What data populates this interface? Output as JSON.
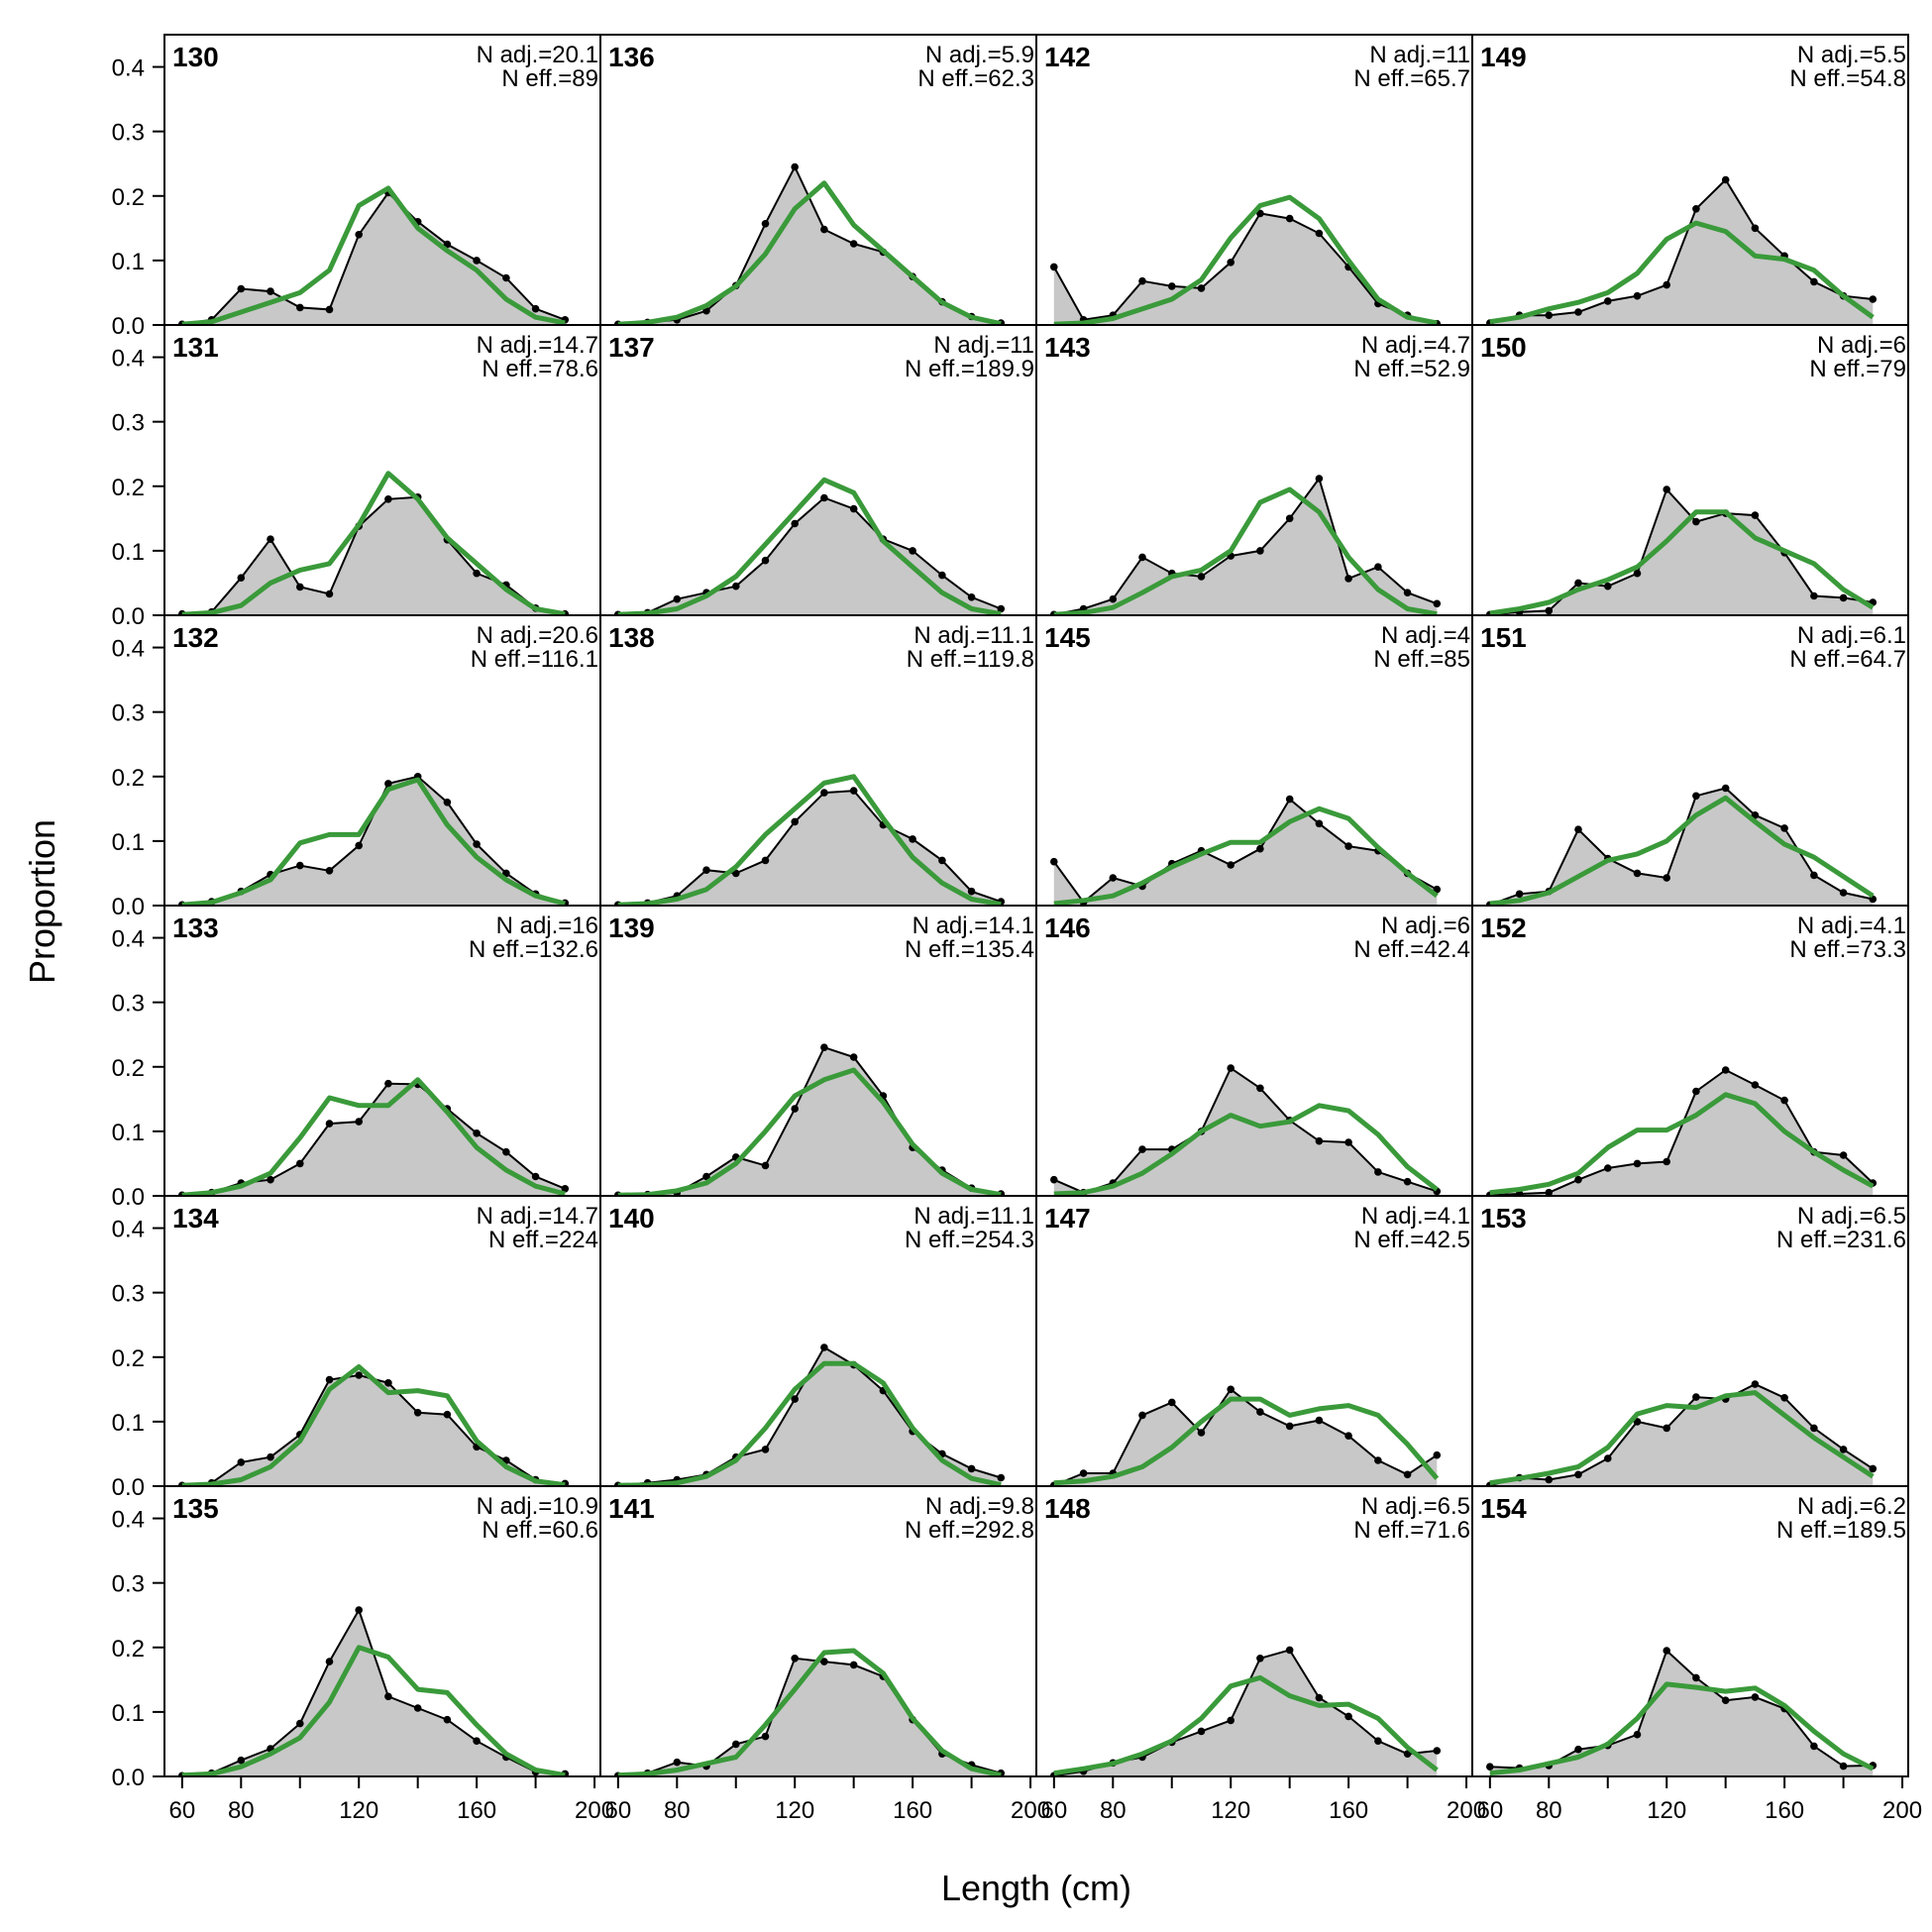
{
  "chart_data": {
    "type": "area",
    "xlabel": "Length (cm)",
    "ylabel": "Proportion",
    "xlim": [
      54,
      202
    ],
    "ylim": [
      0,
      0.45
    ],
    "x_ticks": [
      60,
      80,
      120,
      160,
      200
    ],
    "y_ticks": [
      0.0,
      0.1,
      0.2,
      0.3,
      0.4
    ],
    "x_ticks_formatted": [
      "60",
      "80",
      "120",
      "160",
      "200"
    ],
    "y_ticks_formatted": [
      "0.0",
      "0.1",
      "0.2",
      "0.3",
      "0.4"
    ],
    "x": [
      60,
      70,
      80,
      90,
      100,
      110,
      120,
      130,
      140,
      150,
      160,
      170,
      180,
      190
    ],
    "grid": false,
    "colors": {
      "observed_fill": "#c8c8c8",
      "observed_line": "#000000",
      "expected_line": "#3a9a3a",
      "zero_line": "#b4b4b4"
    },
    "layout": {
      "rows": 6,
      "cols": 4,
      "order": "column-major"
    },
    "panels": [
      {
        "id": "130",
        "n_adj": "N adj.=20.1",
        "n_eff": "N eff.=89",
        "obs": [
          0.001,
          0.008,
          0.056,
          0.052,
          0.027,
          0.024,
          0.14,
          0.205,
          0.16,
          0.125,
          0.1,
          0.073,
          0.025,
          0.008
        ],
        "exp": [
          0.001,
          0.005,
          0.02,
          0.035,
          0.05,
          0.085,
          0.185,
          0.212,
          0.15,
          0.115,
          0.085,
          0.04,
          0.012,
          0.003
        ]
      },
      {
        "id": "131",
        "n_adj": "N adj.=14.7",
        "n_eff": "N eff.=78.6",
        "obs": [
          0.002,
          0.005,
          0.058,
          0.118,
          0.044,
          0.033,
          0.138,
          0.18,
          0.183,
          0.117,
          0.065,
          0.047,
          0.011,
          0.002
        ],
        "exp": [
          0.001,
          0.004,
          0.015,
          0.05,
          0.07,
          0.08,
          0.14,
          0.22,
          0.18,
          0.12,
          0.08,
          0.04,
          0.01,
          0.002
        ]
      },
      {
        "id": "132",
        "n_adj": "N adj.=20.6",
        "n_eff": "N eff.=116.1",
        "obs": [
          0.001,
          0.006,
          0.022,
          0.048,
          0.062,
          0.054,
          0.093,
          0.189,
          0.2,
          0.16,
          0.095,
          0.05,
          0.018,
          0.004
        ],
        "exp": [
          0.001,
          0.005,
          0.02,
          0.04,
          0.097,
          0.11,
          0.11,
          0.18,
          0.195,
          0.125,
          0.075,
          0.04,
          0.015,
          0.003
        ]
      },
      {
        "id": "133",
        "n_adj": "N adj.=16",
        "n_eff": "N eff.=132.6",
        "obs": [
          0.001,
          0.005,
          0.02,
          0.025,
          0.05,
          0.112,
          0.115,
          0.174,
          0.173,
          0.135,
          0.097,
          0.068,
          0.03,
          0.011
        ],
        "exp": [
          0.001,
          0.005,
          0.015,
          0.035,
          0.09,
          0.152,
          0.14,
          0.14,
          0.18,
          0.13,
          0.075,
          0.04,
          0.015,
          0.003
        ]
      },
      {
        "id": "134",
        "n_adj": "N adj.=14.7",
        "n_eff": "N eff.=224",
        "obs": [
          0.001,
          0.005,
          0.037,
          0.045,
          0.08,
          0.165,
          0.172,
          0.16,
          0.114,
          0.111,
          0.061,
          0.04,
          0.01,
          0.004
        ],
        "exp": [
          0.001,
          0.003,
          0.01,
          0.03,
          0.07,
          0.15,
          0.185,
          0.145,
          0.148,
          0.14,
          0.07,
          0.03,
          0.008,
          0.002
        ]
      },
      {
        "id": "135",
        "n_adj": "N adj.=10.9",
        "n_eff": "N eff.=60.6",
        "obs": [
          0.001,
          0.005,
          0.025,
          0.043,
          0.082,
          0.178,
          0.258,
          0.124,
          0.106,
          0.088,
          0.055,
          0.03,
          0.007,
          0.004
        ],
        "exp": [
          0.002,
          0.004,
          0.015,
          0.035,
          0.06,
          0.115,
          0.2,
          0.185,
          0.135,
          0.13,
          0.08,
          0.035,
          0.01,
          0.002
        ]
      },
      {
        "id": "136",
        "n_adj": "N adj.=5.9",
        "n_eff": "N eff.=62.3",
        "obs": [
          0.001,
          0.004,
          0.008,
          0.022,
          0.061,
          0.157,
          0.245,
          0.148,
          0.126,
          0.113,
          0.075,
          0.036,
          0.013,
          0.003
        ],
        "exp": [
          0.001,
          0.004,
          0.012,
          0.03,
          0.06,
          0.11,
          0.18,
          0.22,
          0.155,
          0.115,
          0.075,
          0.035,
          0.012,
          0.002
        ]
      },
      {
        "id": "137",
        "n_adj": "N adj.=11",
        "n_eff": "N eff.=189.9",
        "obs": [
          0.001,
          0.004,
          0.025,
          0.035,
          0.045,
          0.085,
          0.142,
          0.182,
          0.165,
          0.118,
          0.1,
          0.062,
          0.028,
          0.01
        ],
        "exp": [
          0.001,
          0.003,
          0.01,
          0.03,
          0.06,
          0.11,
          0.16,
          0.21,
          0.19,
          0.115,
          0.075,
          0.035,
          0.01,
          0.002
        ]
      },
      {
        "id": "138",
        "n_adj": "N adj.=11.1",
        "n_eff": "N eff.=119.8",
        "obs": [
          0.001,
          0.004,
          0.015,
          0.055,
          0.05,
          0.07,
          0.13,
          0.175,
          0.178,
          0.125,
          0.103,
          0.07,
          0.022,
          0.006
        ],
        "exp": [
          0.001,
          0.003,
          0.01,
          0.025,
          0.06,
          0.11,
          0.15,
          0.19,
          0.2,
          0.135,
          0.075,
          0.035,
          0.01,
          0.002
        ]
      },
      {
        "id": "139",
        "n_adj": "N adj.=14.1",
        "n_eff": "N eff.=135.4",
        "obs": [
          0.001,
          0.002,
          0.005,
          0.03,
          0.06,
          0.047,
          0.135,
          0.23,
          0.215,
          0.155,
          0.075,
          0.04,
          0.012,
          0.003
        ],
        "exp": [
          0.001,
          0.002,
          0.008,
          0.02,
          0.05,
          0.1,
          0.155,
          0.18,
          0.195,
          0.145,
          0.08,
          0.035,
          0.01,
          0.002
        ]
      },
      {
        "id": "140",
        "n_adj": "N adj.=11.1",
        "n_eff": "N eff.=254.3",
        "obs": [
          0.001,
          0.005,
          0.01,
          0.018,
          0.045,
          0.057,
          0.135,
          0.215,
          0.188,
          0.148,
          0.085,
          0.05,
          0.027,
          0.013
        ],
        "exp": [
          0.001,
          0.002,
          0.005,
          0.015,
          0.04,
          0.09,
          0.15,
          0.19,
          0.19,
          0.16,
          0.09,
          0.04,
          0.012,
          0.002
        ]
      },
      {
        "id": "141",
        "n_adj": "N adj.=9.8",
        "n_eff": "N eff.=292.8",
        "obs": [
          0.001,
          0.005,
          0.022,
          0.016,
          0.05,
          0.062,
          0.183,
          0.178,
          0.173,
          0.155,
          0.088,
          0.035,
          0.018,
          0.005
        ],
        "exp": [
          0.002,
          0.004,
          0.01,
          0.02,
          0.03,
          0.08,
          0.135,
          0.192,
          0.195,
          0.16,
          0.09,
          0.04,
          0.012,
          0.002
        ]
      },
      {
        "id": "142",
        "n_adj": "N adj.=11",
        "n_eff": "N eff.=65.7",
        "obs": [
          0.09,
          0.008,
          0.015,
          0.068,
          0.06,
          0.057,
          0.097,
          0.173,
          0.165,
          0.142,
          0.09,
          0.033,
          0.015,
          0.002
        ],
        "exp": [
          0.001,
          0.003,
          0.01,
          0.025,
          0.04,
          0.07,
          0.135,
          0.185,
          0.198,
          0.165,
          0.1,
          0.04,
          0.012,
          0.003
        ]
      },
      {
        "id": "143",
        "n_adj": "N adj.=4.7",
        "n_eff": "N eff.=52.9",
        "obs": [
          0.001,
          0.01,
          0.025,
          0.09,
          0.065,
          0.06,
          0.092,
          0.1,
          0.15,
          0.212,
          0.057,
          0.075,
          0.035,
          0.018
        ],
        "exp": [
          0.001,
          0.004,
          0.012,
          0.035,
          0.06,
          0.07,
          0.1,
          0.175,
          0.195,
          0.16,
          0.09,
          0.04,
          0.01,
          0.002
        ]
      },
      {
        "id": "145",
        "n_adj": "N adj.=4",
        "n_eff": "N eff.=85",
        "obs": [
          0.068,
          0.005,
          0.043,
          0.03,
          0.065,
          0.085,
          0.063,
          0.088,
          0.165,
          0.127,
          0.092,
          0.085,
          0.05,
          0.025
        ],
        "exp": [
          0.003,
          0.008,
          0.015,
          0.035,
          0.06,
          0.08,
          0.098,
          0.098,
          0.13,
          0.15,
          0.135,
          0.09,
          0.05,
          0.015
        ]
      },
      {
        "id": "146",
        "n_adj": "N adj.=6",
        "n_eff": "N eff.=42.4",
        "obs": [
          0.025,
          0.005,
          0.02,
          0.072,
          0.072,
          0.1,
          0.198,
          0.167,
          0.117,
          0.085,
          0.083,
          0.037,
          0.022,
          0.007
        ],
        "exp": [
          0.003,
          0.005,
          0.015,
          0.035,
          0.065,
          0.1,
          0.125,
          0.108,
          0.115,
          0.14,
          0.132,
          0.095,
          0.045,
          0.01
        ]
      },
      {
        "id": "147",
        "n_adj": "N adj.=4.1",
        "n_eff": "N eff.=42.5",
        "obs": [
          0.001,
          0.02,
          0.02,
          0.11,
          0.13,
          0.083,
          0.15,
          0.115,
          0.093,
          0.102,
          0.078,
          0.04,
          0.018,
          0.048
        ],
        "exp": [
          0.005,
          0.008,
          0.015,
          0.03,
          0.06,
          0.1,
          0.135,
          0.135,
          0.11,
          0.12,
          0.125,
          0.11,
          0.065,
          0.012
        ]
      },
      {
        "id": "148",
        "n_adj": "N adj.=6.5",
        "n_eff": "N eff.=71.6",
        "obs": [
          0.001,
          0.008,
          0.021,
          0.03,
          0.053,
          0.07,
          0.087,
          0.183,
          0.196,
          0.122,
          0.093,
          0.055,
          0.035,
          0.04
        ],
        "exp": [
          0.005,
          0.012,
          0.02,
          0.035,
          0.055,
          0.09,
          0.14,
          0.153,
          0.125,
          0.11,
          0.112,
          0.09,
          0.045,
          0.01
        ]
      },
      {
        "id": "149",
        "n_adj": "N adj.=5.5",
        "n_eff": "N eff.=54.8",
        "obs": [
          0.003,
          0.015,
          0.015,
          0.02,
          0.037,
          0.045,
          0.062,
          0.18,
          0.225,
          0.15,
          0.107,
          0.067,
          0.045,
          0.04
        ],
        "exp": [
          0.005,
          0.012,
          0.025,
          0.035,
          0.05,
          0.08,
          0.133,
          0.158,
          0.145,
          0.107,
          0.102,
          0.085,
          0.045,
          0.012
        ]
      },
      {
        "id": "150",
        "n_adj": "N adj.=6",
        "n_eff": "N eff.=79",
        "obs": [
          0.001,
          0.005,
          0.007,
          0.05,
          0.045,
          0.065,
          0.195,
          0.145,
          0.158,
          0.155,
          0.097,
          0.03,
          0.027,
          0.02
        ],
        "exp": [
          0.003,
          0.01,
          0.02,
          0.04,
          0.055,
          0.075,
          0.115,
          0.16,
          0.16,
          0.12,
          0.1,
          0.08,
          0.04,
          0.012
        ]
      },
      {
        "id": "151",
        "n_adj": "N adj.=6.1",
        "n_eff": "N eff.=64.7",
        "obs": [
          0.001,
          0.018,
          0.022,
          0.118,
          0.073,
          0.05,
          0.043,
          0.17,
          0.182,
          0.14,
          0.12,
          0.047,
          0.02,
          0.01
        ],
        "exp": [
          0.003,
          0.008,
          0.02,
          0.045,
          0.07,
          0.08,
          0.1,
          0.14,
          0.167,
          0.13,
          0.095,
          0.075,
          0.045,
          0.015
        ]
      },
      {
        "id": "152",
        "n_adj": "N adj.=4.1",
        "n_eff": "N eff.=73.3",
        "obs": [
          0.001,
          0.003,
          0.005,
          0.025,
          0.043,
          0.05,
          0.053,
          0.162,
          0.195,
          0.172,
          0.148,
          0.068,
          0.063,
          0.02
        ],
        "exp": [
          0.005,
          0.01,
          0.018,
          0.035,
          0.075,
          0.102,
          0.102,
          0.125,
          0.157,
          0.143,
          0.1,
          0.068,
          0.04,
          0.015
        ]
      },
      {
        "id": "153",
        "n_adj": "N adj.=6.5",
        "n_eff": "N eff.=231.6",
        "obs": [
          0.001,
          0.013,
          0.01,
          0.018,
          0.043,
          0.1,
          0.09,
          0.138,
          0.135,
          0.158,
          0.137,
          0.09,
          0.057,
          0.027
        ],
        "exp": [
          0.005,
          0.012,
          0.02,
          0.03,
          0.06,
          0.112,
          0.125,
          0.122,
          0.14,
          0.145,
          0.11,
          0.075,
          0.045,
          0.015
        ]
      },
      {
        "id": "154",
        "n_adj": "N adj.=6.2",
        "n_eff": "N eff.=189.5",
        "obs": [
          0.015,
          0.013,
          0.017,
          0.042,
          0.048,
          0.065,
          0.195,
          0.153,
          0.118,
          0.123,
          0.105,
          0.047,
          0.016,
          0.017
        ],
        "exp": [
          0.005,
          0.01,
          0.02,
          0.03,
          0.05,
          0.09,
          0.143,
          0.138,
          0.132,
          0.137,
          0.11,
          0.07,
          0.035,
          0.012
        ]
      }
    ]
  }
}
